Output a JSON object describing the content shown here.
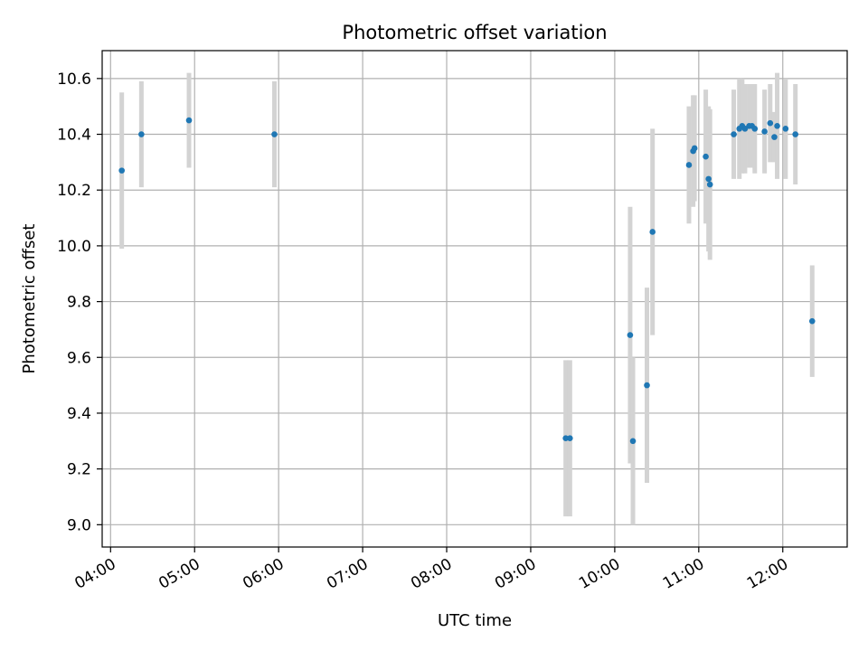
{
  "chart_data": {
    "type": "scatter",
    "title": "Photometric offset variation",
    "xlabel": "UTC time",
    "ylabel": "Photometric offset",
    "x_format": "HH:MM",
    "xlim": [
      "03:54",
      "12:46"
    ],
    "ylim": [
      8.92,
      10.7
    ],
    "x_ticks": [
      "04:00",
      "05:00",
      "06:00",
      "07:00",
      "08:00",
      "09:00",
      "10:00",
      "11:00",
      "12:00"
    ],
    "y_ticks": [
      9.0,
      9.2,
      9.4,
      9.6,
      9.8,
      10.0,
      10.2,
      10.4,
      10.6
    ],
    "grid": true,
    "colors": {
      "marker": "#1f77b4",
      "errorbar": "#d3d3d3",
      "grid": "#b0b0b0"
    },
    "points": [
      {
        "t": "04:08",
        "y": 10.27,
        "err": 0.28
      },
      {
        "t": "04:22",
        "y": 10.4,
        "err": 0.19
      },
      {
        "t": "04:56",
        "y": 10.45,
        "err": 0.17
      },
      {
        "t": "05:57",
        "y": 10.4,
        "err": 0.19
      },
      {
        "t": "09:25",
        "y": 9.31,
        "err": 0.28
      },
      {
        "t": "09:28",
        "y": 9.31,
        "err": 0.28
      },
      {
        "t": "10:11",
        "y": 9.68,
        "err": 0.46
      },
      {
        "t": "10:13",
        "y": 9.3,
        "err": 0.3
      },
      {
        "t": "10:23",
        "y": 9.5,
        "err": 0.35
      },
      {
        "t": "10:27",
        "y": 10.05,
        "err": 0.37
      },
      {
        "t": "10:53",
        "y": 10.29,
        "err": 0.21
      },
      {
        "t": "10:56",
        "y": 10.34,
        "err": 0.2
      },
      {
        "t": "10:57",
        "y": 10.35,
        "err": 0.19
      },
      {
        "t": "11:05",
        "y": 10.32,
        "err": 0.24
      },
      {
        "t": "11:07",
        "y": 10.24,
        "err": 0.26
      },
      {
        "t": "11:08",
        "y": 10.22,
        "err": 0.27
      },
      {
        "t": "11:25",
        "y": 10.4,
        "err": 0.16
      },
      {
        "t": "11:29",
        "y": 10.42,
        "err": 0.18
      },
      {
        "t": "11:31",
        "y": 10.43,
        "err": 0.17
      },
      {
        "t": "11:33",
        "y": 10.42,
        "err": 0.16
      },
      {
        "t": "11:36",
        "y": 10.43,
        "err": 0.15
      },
      {
        "t": "11:38",
        "y": 10.43,
        "err": 0.15
      },
      {
        "t": "11:40",
        "y": 10.42,
        "err": 0.16
      },
      {
        "t": "11:47",
        "y": 10.41,
        "err": 0.15
      },
      {
        "t": "11:51",
        "y": 10.44,
        "err": 0.14
      },
      {
        "t": "11:54",
        "y": 10.39,
        "err": 0.09
      },
      {
        "t": "11:56",
        "y": 10.43,
        "err": 0.19
      },
      {
        "t": "12:02",
        "y": 10.42,
        "err": 0.18
      },
      {
        "t": "12:09",
        "y": 10.4,
        "err": 0.18
      },
      {
        "t": "12:21",
        "y": 9.73,
        "err": 0.2
      }
    ]
  }
}
